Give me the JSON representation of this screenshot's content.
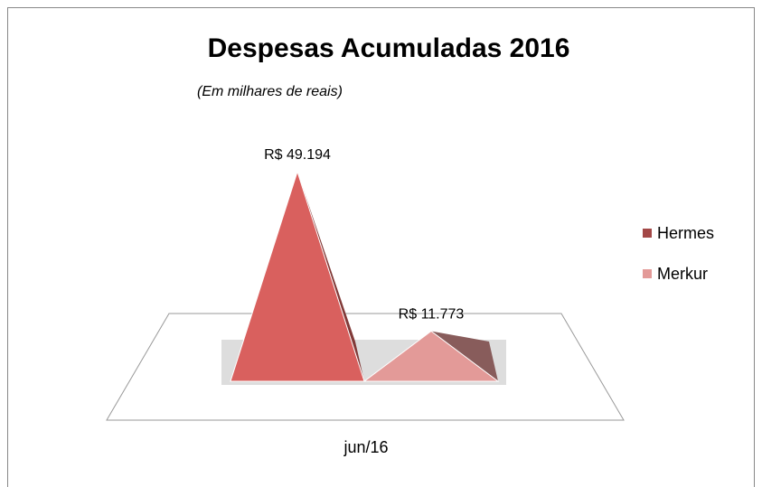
{
  "chart_data": {
    "type": "pyramid",
    "title": "Despesas Acumuladas 2016",
    "subtitle": "(Em milhares de reais)",
    "categories": [
      "jun/16"
    ],
    "series": [
      {
        "name": "Hermes",
        "color": "#d9605e",
        "values": [
          49194
        ],
        "value_labels": [
          "R$ 49.194"
        ]
      },
      {
        "name": "Merkur",
        "color": "#e39a98",
        "values": [
          11773
        ],
        "value_labels": [
          "R$ 11.773"
        ]
      }
    ],
    "legend": "right"
  }
}
